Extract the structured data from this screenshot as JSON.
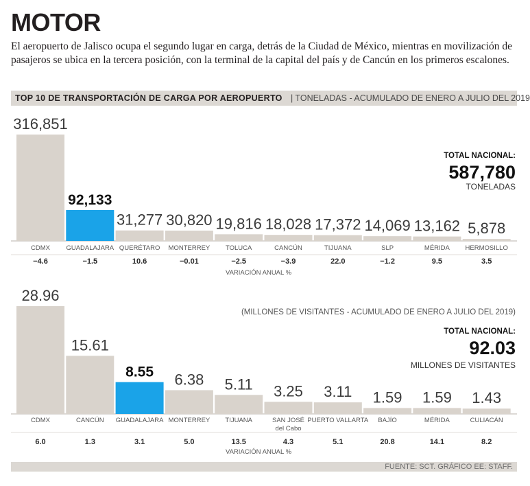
{
  "header": {
    "title": "MOTOR",
    "intro": "El aeropuerto de Jalisco ocupa el segundo lugar en carga, detrás de la Ciudad de México, mientras en movilización de pasajeros se ubica en la tercera posición, con la terminal de la capital del país y de Cancún en los primeros escalones."
  },
  "section": {
    "title": "TOP 10 DE TRANSPORTACIÓN DE CARGA POR AEROPUERTO",
    "subtitle": "| TONELADAS - ACUMULADO DE ENERO A JULIO DEL 2019"
  },
  "colors": {
    "bar": "#d9d3cc",
    "highlight": "#1aa3e8",
    "rule": "#b9b3ad"
  },
  "chart_data": [
    {
      "type": "bar",
      "title": "TOP 10 DE TRANSPORTACIÓN DE CARGA POR AEROPUERTO",
      "unit_label": "TONELADAS - ACUMULADO DE ENERO A JULIO DEL 2019",
      "categories": [
        "CDMX",
        "GUADALAJARA",
        "QUERÉTARO",
        "MONTERREY",
        "TOLUCA",
        "CANCÚN",
        "TIJUANA",
        "SLP",
        "MÉRIDA",
        "HERMOSILLO"
      ],
      "values": [
        316851,
        92133,
        31277,
        30820,
        19816,
        18028,
        17372,
        14069,
        13162,
        5878
      ],
      "value_labels": [
        "316,851",
        "92,133",
        "31,277",
        "30,820",
        "19,816",
        "18,028",
        "17,372",
        "14,069",
        "13,162",
        "5,878"
      ],
      "highlight": "GUADALAJARA",
      "variation": [
        "−4.6",
        "−1.5",
        "10.6",
        "−0.01",
        "−2.5",
        "−3.9",
        "22.0",
        "−1.2",
        "9.5",
        "3.5"
      ],
      "variation_label": "VARIACIÓN ANUAL %",
      "total_label": "TOTAL NACIONAL:",
      "total_value": "587,780",
      "total_unit": "TONELADAS",
      "ylim": [
        0,
        316851
      ]
    },
    {
      "type": "bar",
      "subtitle": "(MILLONES DE VISITANTES - ACUMULADO DE ENERO A JULIO DEL 2019)",
      "categories": [
        "CDMX",
        "CANCÚN",
        "GUADALAJARA",
        "MONTERREY",
        "TIJUANA",
        "SAN JOSÉ\ndel Cabo",
        "PUERTO VALLARTA",
        "BAJÍO",
        "MÉRIDA",
        "CULIACÁN"
      ],
      "values": [
        28.96,
        15.61,
        8.55,
        6.38,
        5.11,
        3.25,
        3.11,
        1.59,
        1.59,
        1.43
      ],
      "value_labels": [
        "28.96",
        "15.61",
        "8.55",
        "6.38",
        "5.11",
        "3.25",
        "3.11",
        "1.59",
        "1.59",
        "1.43"
      ],
      "highlight": "GUADALAJARA",
      "variation": [
        "6.0",
        "1.3",
        "3.1",
        "5.0",
        "13.5",
        "4.3",
        "5.1",
        "20.8",
        "14.1",
        "8.2"
      ],
      "variation_label": "VARIACIÓN ANUAL %",
      "total_label": "TOTAL NACIONAL:",
      "total_value": "92.03",
      "total_unit": "MILLONES DE VISITANTES",
      "ylim": [
        0,
        28.96
      ]
    }
  ],
  "footer": {
    "source": "FUENTE: SCT. GRÁFICO EE: STAFF."
  }
}
